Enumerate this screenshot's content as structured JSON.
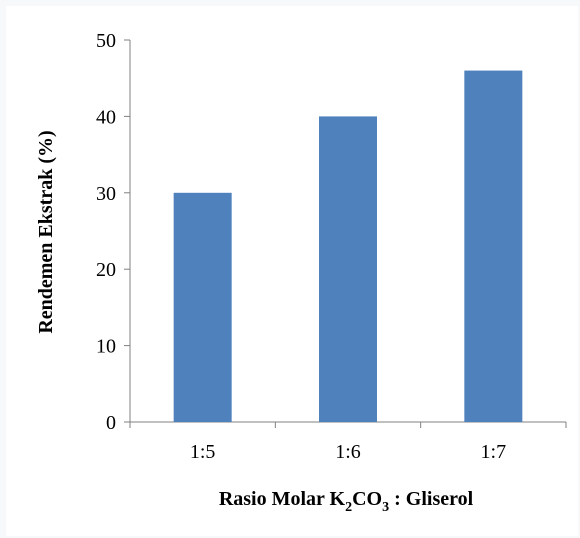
{
  "chart_data": {
    "type": "bar",
    "categories": [
      "1:5",
      "1:6",
      "1:7"
    ],
    "values": [
      30,
      40,
      46
    ],
    "ylabel": "Rendemen Ekstrak (%)",
    "xlabel": {
      "prefix": "Rasio Molar K",
      "sub1": "2",
      "mid": "CO",
      "sub2": "3",
      "suffix": " : Gliserol"
    },
    "ylim": [
      0,
      50
    ],
    "yticks": [
      "0",
      "10",
      "20",
      "30",
      "40",
      "50"
    ],
    "grid": false,
    "legend": "none",
    "bar_color": "#4f81bd",
    "axis_color": "#808080"
  }
}
